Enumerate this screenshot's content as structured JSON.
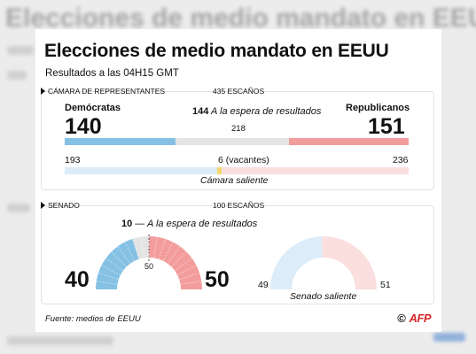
{
  "background": {
    "title": "Elecciones de medio mandato en EEUU",
    "subtitle_lines": [
      "Resultados",
      "Cámara de representantes",
      "Senado",
      "Fuente: medios de EEUU"
    ]
  },
  "infographic": {
    "title": "Elecciones de medio mandato en EEUU",
    "subtitle": "Resultados a las 04H15 GMT",
    "house": {
      "label": "Cámara de representantes",
      "seats": "435 ESCAÑOS",
      "dem_label": "Demócratas",
      "rep_label": "Republicanos",
      "dem_count": "140",
      "rep_count": "151",
      "await_count": "144",
      "await_label": "A la espera de resultados",
      "majority": "218",
      "prev_dem": "193",
      "prev_vacant": "6 (vacantes)",
      "prev_rep": "236",
      "prev_label": "Cámara saliente"
    },
    "senate": {
      "label": "Senado",
      "seats": "100 ESCAÑOS",
      "await_count": "10",
      "await_label": "A la espera de resultados",
      "majority": "50",
      "dem_count": "40",
      "rep_count": "50",
      "prev_dem": "49",
      "prev_rep": "51",
      "prev_label": "Senado saliente"
    },
    "source": "Fuente: medios de EEUU",
    "logo_copyright": "©",
    "logo": "AFP"
  },
  "chart_data": [
    {
      "type": "bar",
      "title": "Cámara de representantes",
      "categories": [
        "Demócratas",
        "A la espera de resultados",
        "Republicanos"
      ],
      "values": [
        140,
        144,
        151
      ],
      "previous": {
        "categories": [
          "Demócratas",
          "vacantes",
          "Republicanos"
        ],
        "values": [
          193,
          6,
          236
        ]
      },
      "total": 435,
      "majority": 218
    },
    {
      "type": "pie",
      "title": "Senado",
      "categories": [
        "Demócratas",
        "A la espera de resultados",
        "Republicanos"
      ],
      "values": [
        40,
        10,
        50
      ],
      "previous": {
        "categories": [
          "Demócratas",
          "Republicanos"
        ],
        "values": [
          49,
          51
        ]
      },
      "total": 100,
      "majority": 50
    }
  ],
  "colors": {
    "dem": "#85c1e4",
    "rep": "#f39c9c",
    "pending": "#e4e4e4",
    "dem_prev": "#dcecf8",
    "rep_prev": "#fbdede",
    "vacant": "#f5d76e",
    "logo": "#d62828"
  }
}
